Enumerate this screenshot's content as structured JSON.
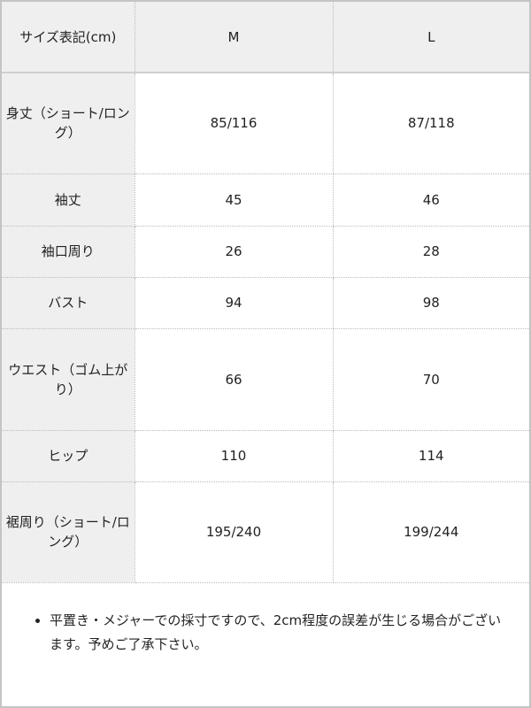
{
  "table": {
    "header": [
      "サイズ表記(cm)",
      "M",
      "L"
    ],
    "rows": [
      {
        "label": "身丈（ショート/ロング）",
        "values": [
          "85/116",
          "87/118"
        ]
      },
      {
        "label": "袖丈",
        "values": [
          "45",
          "46"
        ]
      },
      {
        "label": "袖口周り",
        "values": [
          "26",
          "28"
        ]
      },
      {
        "label": "バスト",
        "values": [
          "94",
          "98"
        ]
      },
      {
        "label": "ウエスト（ゴム上がり）",
        "values": [
          "66",
          "70"
        ]
      },
      {
        "label": "ヒップ",
        "values": [
          "110",
          "114"
        ]
      },
      {
        "label": "裾周り（ショート/ロング）",
        "values": [
          "195/240",
          "199/244"
        ]
      }
    ]
  },
  "note": "平置き・メジャーでの採寸ですので、2cm程度の誤差が生じる場合がございます。予めご了承下さい。"
}
